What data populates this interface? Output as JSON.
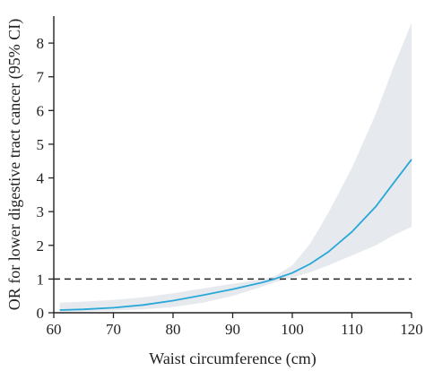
{
  "chart_data": {
    "type": "line",
    "title": "",
    "xlabel": "Waist circumference (cm)",
    "ylabel": "OR for lower digestive tract cancer (95% CI)",
    "xlim": [
      60,
      120
    ],
    "ylim": [
      0,
      8.8
    ],
    "xticks": [
      60,
      70,
      80,
      90,
      100,
      110,
      120
    ],
    "yticks": [
      0,
      1,
      2,
      3,
      4,
      5,
      6,
      7,
      8
    ],
    "grid": false,
    "legend": "none",
    "reference_line": {
      "y": 1,
      "style": "dashed",
      "color": "#222222"
    },
    "series": [
      {
        "color": "#29a8d8",
        "ci_color": "#e6e9ee",
        "points": [
          {
            "x": 61,
            "y": 0.08,
            "lo": 0.03,
            "hi": 0.3
          },
          {
            "x": 65,
            "y": 0.1,
            "lo": 0.04,
            "hi": 0.33
          },
          {
            "x": 70,
            "y": 0.15,
            "lo": 0.06,
            "hi": 0.38
          },
          {
            "x": 75,
            "y": 0.23,
            "lo": 0.1,
            "hi": 0.46
          },
          {
            "x": 80,
            "y": 0.36,
            "lo": 0.17,
            "hi": 0.58
          },
          {
            "x": 85,
            "y": 0.52,
            "lo": 0.3,
            "hi": 0.72
          },
          {
            "x": 90,
            "y": 0.7,
            "lo": 0.5,
            "hi": 0.86
          },
          {
            "x": 95,
            "y": 0.9,
            "lo": 0.78,
            "hi": 1.0
          },
          {
            "x": 97,
            "y": 1.0,
            "lo": 0.9,
            "hi": 1.08
          },
          {
            "x": 100,
            "y": 1.18,
            "lo": 1.05,
            "hi": 1.4
          },
          {
            "x": 103,
            "y": 1.45,
            "lo": 1.2,
            "hi": 2.05
          },
          {
            "x": 106,
            "y": 1.8,
            "lo": 1.4,
            "hi": 2.95
          },
          {
            "x": 110,
            "y": 2.4,
            "lo": 1.7,
            "hi": 4.3
          },
          {
            "x": 114,
            "y": 3.15,
            "lo": 2.0,
            "hi": 5.9
          },
          {
            "x": 117,
            "y": 3.85,
            "lo": 2.3,
            "hi": 7.3
          },
          {
            "x": 120,
            "y": 4.55,
            "lo": 2.55,
            "hi": 8.6
          }
        ]
      }
    ]
  }
}
